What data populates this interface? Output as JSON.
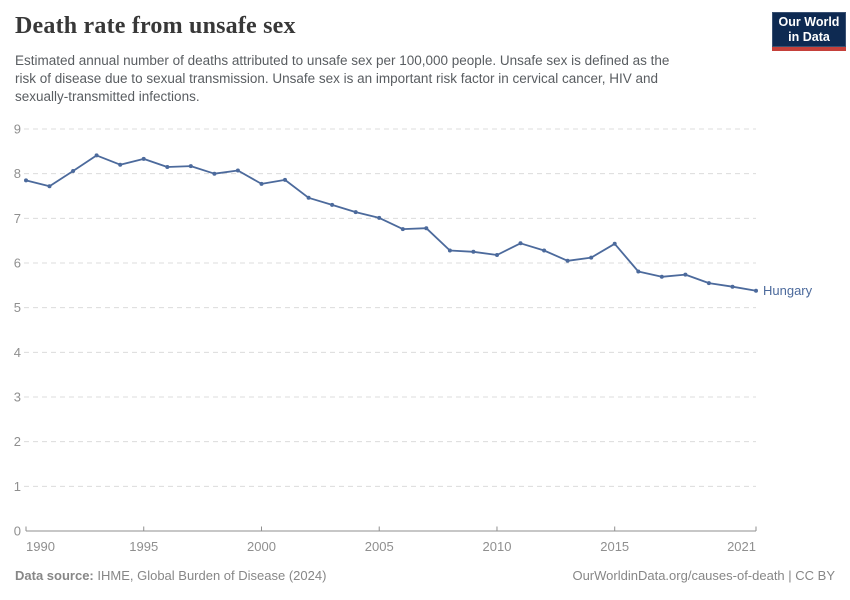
{
  "header": {
    "title": "Death rate from unsafe sex",
    "subtitle_lines": [
      "Estimated annual number of deaths attributed to unsafe sex per 100,000 people. Unsafe sex is defined as the",
      "risk of disease due to sexual transmission. Unsafe sex is an important risk factor in cervical cancer, HIV and",
      "sexually-transmitted infections."
    ],
    "logo": {
      "line1": "Our World",
      "line2": "in Data"
    }
  },
  "colors": {
    "series_blue": "#4C6A9C",
    "logo_navy": "#0E2A52",
    "logo_red": "#C5403A",
    "gridline": "#dcdcdc",
    "axis": "#8f8f8f",
    "tick_label": "#8f8f8f",
    "title_text": "#383838",
    "subtitle_text": "#595d61",
    "footer_text": "#878787"
  },
  "chart_data": {
    "type": "line",
    "title": "Death rate from unsafe sex",
    "xlabel": "",
    "ylabel": "",
    "xlim": [
      1990,
      2021
    ],
    "ylim": [
      0,
      9
    ],
    "x_ticks": [
      1990,
      1995,
      2000,
      2005,
      2010,
      2015,
      2021
    ],
    "y_ticks": [
      0,
      1,
      2,
      3,
      4,
      5,
      6,
      7,
      8,
      9
    ],
    "grid": "horizontal-dashed",
    "legend_position": "end-of-line-label",
    "series": [
      {
        "name": "Hungary",
        "color": "#4C6A9C",
        "years": [
          1990,
          1991,
          1992,
          1993,
          1994,
          1995,
          1996,
          1997,
          1998,
          1999,
          2000,
          2001,
          2002,
          2003,
          2004,
          2005,
          2006,
          2007,
          2008,
          2009,
          2010,
          2011,
          2012,
          2013,
          2014,
          2015,
          2016,
          2017,
          2018,
          2019,
          2020,
          2021
        ],
        "values": [
          7.85,
          7.72,
          8.06,
          8.41,
          8.2,
          8.33,
          8.15,
          8.17,
          8.0,
          8.07,
          7.77,
          7.86,
          7.46,
          7.3,
          7.14,
          7.01,
          6.76,
          6.78,
          6.28,
          6.25,
          6.18,
          6.44,
          6.28,
          6.05,
          6.12,
          6.43,
          5.81,
          5.69,
          5.74,
          5.55,
          5.47,
          5.38
        ]
      }
    ]
  },
  "footer": {
    "source_label": "Data source:",
    "source_text": " IHME, Global Burden of Disease (2024)",
    "credit": "OurWorldinData.org/causes-of-death | CC BY"
  }
}
